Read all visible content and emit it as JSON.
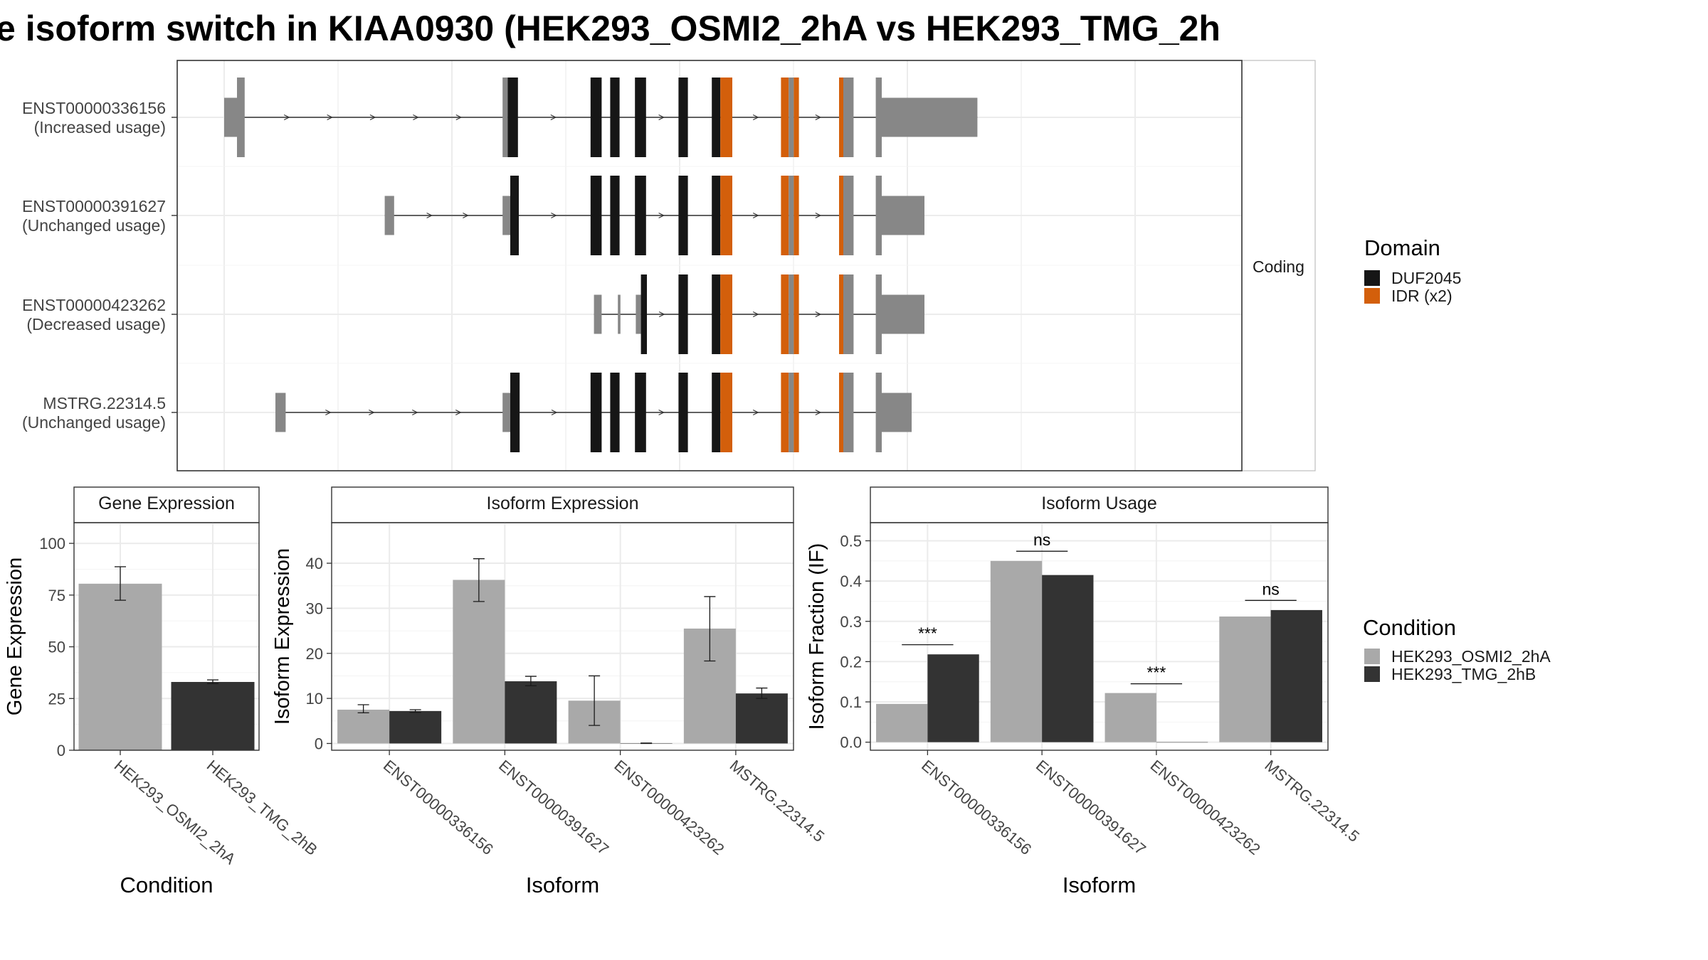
{
  "title": "e isoform switch in KIAA0930 (HEK293_OSMI2_2hA vs HEK293_TMG_2h",
  "colors": {
    "duf": "#161616",
    "idr": "#d35f0b",
    "utr": "#878787",
    "cond_a": "#a9a9a9",
    "cond_b": "#333333"
  },
  "structure": {
    "strip_label": "Coding",
    "transcripts": [
      {
        "id": "ENST00000336156",
        "usage": "(Increased usage)",
        "exons": [
          [
            0,
            15,
            "utr",
            "thin"
          ],
          [
            15,
            24,
            "utr",
            "thick"
          ],
          [
            326,
            332,
            "utr",
            "thick"
          ],
          [
            332,
            344,
            "duf",
            "thick"
          ],
          [
            429,
            442,
            "duf",
            "thick"
          ],
          [
            452,
            463,
            "duf",
            "thick"
          ],
          [
            481,
            494,
            "duf",
            "thick"
          ],
          [
            532,
            543,
            "duf",
            "thick"
          ],
          [
            571,
            581,
            "duf",
            "thick"
          ],
          [
            581,
            595,
            "idr",
            "thick"
          ],
          [
            652,
            661,
            "idr",
            "thick"
          ],
          [
            661,
            667,
            "utr",
            "thick"
          ],
          [
            667,
            673,
            "idr",
            "thick"
          ],
          [
            720,
            725,
            "idr",
            "thick"
          ],
          [
            725,
            737,
            "utr",
            "thick"
          ],
          [
            763,
            770,
            "utr",
            "thick"
          ],
          [
            770,
            882,
            "utr",
            "thin"
          ]
        ]
      },
      {
        "id": "ENST00000391627",
        "usage": "(Unchanged usage)",
        "exons": [
          [
            188,
            199,
            "utr",
            "thin"
          ],
          [
            326,
            335,
            "utr",
            "thin"
          ],
          [
            335,
            345,
            "duf",
            "thick"
          ],
          [
            429,
            442,
            "duf",
            "thick"
          ],
          [
            452,
            463,
            "duf",
            "thick"
          ],
          [
            481,
            494,
            "duf",
            "thick"
          ],
          [
            532,
            543,
            "duf",
            "thick"
          ],
          [
            571,
            581,
            "duf",
            "thick"
          ],
          [
            581,
            595,
            "idr",
            "thick"
          ],
          [
            652,
            661,
            "idr",
            "thick"
          ],
          [
            661,
            667,
            "utr",
            "thick"
          ],
          [
            667,
            673,
            "idr",
            "thick"
          ],
          [
            720,
            725,
            "idr",
            "thick"
          ],
          [
            725,
            737,
            "utr",
            "thick"
          ],
          [
            763,
            770,
            "utr",
            "thick"
          ],
          [
            770,
            820,
            "utr",
            "thin"
          ]
        ]
      },
      {
        "id": "ENST00000423262",
        "usage": "(Decreased usage)",
        "exons": [
          [
            433,
            442,
            "utr",
            "thin"
          ],
          [
            461,
            464,
            "utr",
            "thin"
          ],
          [
            482,
            488,
            "utr",
            "thin"
          ],
          [
            488,
            495,
            "duf",
            "thick"
          ],
          [
            532,
            543,
            "duf",
            "thick"
          ],
          [
            571,
            581,
            "duf",
            "thick"
          ],
          [
            581,
            595,
            "idr",
            "thick"
          ],
          [
            652,
            661,
            "idr",
            "thick"
          ],
          [
            661,
            667,
            "utr",
            "thick"
          ],
          [
            667,
            673,
            "idr",
            "thick"
          ],
          [
            720,
            725,
            "idr",
            "thick"
          ],
          [
            725,
            737,
            "utr",
            "thick"
          ],
          [
            763,
            770,
            "utr",
            "thick"
          ],
          [
            770,
            820,
            "utr",
            "thin"
          ]
        ]
      },
      {
        "id": "MSTRG.22314.5",
        "usage": "(Unchanged usage)",
        "exons": [
          [
            60,
            72,
            "utr",
            "thin"
          ],
          [
            326,
            335,
            "utr",
            "thin"
          ],
          [
            335,
            346,
            "duf",
            "thick"
          ],
          [
            429,
            442,
            "duf",
            "thick"
          ],
          [
            452,
            463,
            "duf",
            "thick"
          ],
          [
            481,
            494,
            "duf",
            "thick"
          ],
          [
            532,
            543,
            "duf",
            "thick"
          ],
          [
            571,
            581,
            "duf",
            "thick"
          ],
          [
            581,
            595,
            "idr",
            "thick"
          ],
          [
            652,
            661,
            "idr",
            "thick"
          ],
          [
            661,
            667,
            "utr",
            "thick"
          ],
          [
            667,
            673,
            "idr",
            "thick"
          ],
          [
            720,
            725,
            "idr",
            "thick"
          ],
          [
            725,
            737,
            "utr",
            "thick"
          ],
          [
            763,
            770,
            "utr",
            "thick"
          ],
          [
            770,
            805,
            "utr",
            "thin"
          ]
        ]
      }
    ]
  },
  "legend_domain": {
    "title": "Domain",
    "items": [
      {
        "label": "DUF2045",
        "color": "#161616"
      },
      {
        "label": "IDR (x2)",
        "color": "#d35f0b"
      }
    ]
  },
  "legend_condition": {
    "title": "Condition",
    "items": [
      {
        "label": "HEK293_OSMI2_2hA",
        "color": "#a9a9a9"
      },
      {
        "label": "HEK293_TMG_2hB",
        "color": "#333333"
      }
    ]
  },
  "chart_data": [
    {
      "type": "bar",
      "title": "Gene Expression",
      "xlabel": "Condition",
      "ylabel": "Gene Expression",
      "categories": [
        "HEK293_OSMI2_2hA",
        "HEK293_TMG_2hB"
      ],
      "ylim": [
        0,
        110
      ],
      "yticks": [
        0,
        25,
        50,
        75,
        100
      ],
      "series": [
        {
          "values": [
            80.5,
            33
          ],
          "err_low": [
            72.5,
            32.2
          ],
          "err_high": [
            88.7,
            34.0
          ]
        }
      ]
    },
    {
      "type": "bar",
      "title": "Isoform Expression",
      "xlabel": "Isoform",
      "ylabel": "Isoform Expression",
      "categories": [
        "ENST00000336156",
        "ENST00000391627",
        "ENST00000423262",
        "MSTRG.22314.5"
      ],
      "ylim": [
        -1.5,
        49
      ],
      "yticks": [
        0,
        10,
        20,
        30,
        40
      ],
      "series": [
        {
          "name": "HEK293_OSMI2_2hA",
          "values": [
            7.5,
            36.3,
            9.5,
            25.5
          ],
          "err_low": [
            6.8,
            31.5,
            4.0,
            18.3
          ],
          "err_high": [
            8.6,
            41.0,
            15.0,
            32.6
          ]
        },
        {
          "name": "HEK293_TMG_2hB",
          "values": [
            7.2,
            13.8,
            0.0,
            11.1
          ],
          "err_low": [
            6.9,
            12.8,
            0.0,
            10.0
          ],
          "err_high": [
            7.5,
            14.9,
            0.1,
            12.3
          ]
        }
      ]
    },
    {
      "type": "bar",
      "title": "Isoform Usage",
      "xlabel": "Isoform",
      "ylabel": "Isoform Fraction (IF)",
      "categories": [
        "ENST00000336156",
        "ENST00000391627",
        "ENST00000423262",
        "MSTRG.22314.5"
      ],
      "ylim": [
        -0.02,
        0.545
      ],
      "yticks": [
        0.0,
        0.1,
        0.2,
        0.3,
        0.4,
        0.5
      ],
      "series": [
        {
          "name": "HEK293_OSMI2_2hA",
          "values": [
            0.095,
            0.45,
            0.122,
            0.312
          ]
        },
        {
          "name": "HEK293_TMG_2hB",
          "values": [
            0.218,
            0.415,
            0.0,
            0.328
          ]
        }
      ],
      "significance": [
        {
          "category": "ENST00000336156",
          "label": "***",
          "y": 0.242
        },
        {
          "category": "ENST00000391627",
          "label": "ns",
          "y": 0.474
        },
        {
          "category": "ENST00000423262",
          "label": "***",
          "y": 0.145
        },
        {
          "category": "MSTRG.22314.5",
          "label": "ns",
          "y": 0.352
        }
      ]
    }
  ]
}
